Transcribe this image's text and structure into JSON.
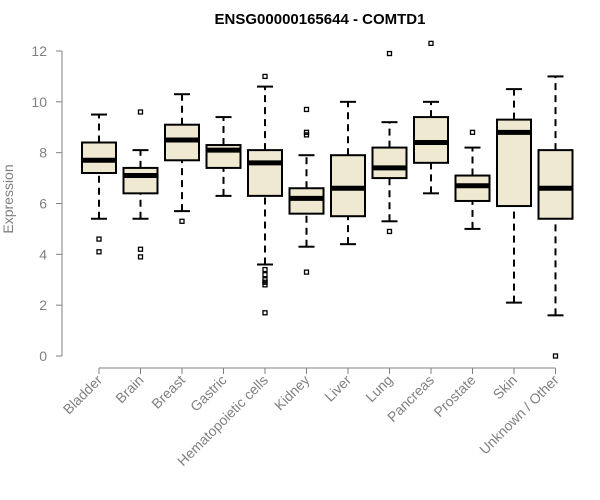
{
  "chart_data": {
    "type": "box",
    "title": "ENSG00000165644 - COMTD1",
    "xlabel": "",
    "ylabel": "Expression",
    "ylim": [
      0,
      12
    ],
    "yticks": [
      0,
      2,
      4,
      6,
      8,
      10,
      12
    ],
    "grid": false,
    "legend": "none",
    "colors": {
      "box_fill": "#efe9d2",
      "stroke": "#000000",
      "axis": "#808080"
    },
    "categories": [
      "Bladder",
      "Brain",
      "Breast",
      "Gastric",
      "Hematopoietic cells",
      "Kidney",
      "Liver",
      "Lung",
      "Pancreas",
      "Prostate",
      "Skin",
      "Unknown / Other"
    ],
    "boxes": [
      {
        "q1": 7.2,
        "median": 7.7,
        "q3": 8.4,
        "whisker_low": 5.4,
        "whisker_high": 9.5,
        "outliers": [
          4.6,
          4.1
        ]
      },
      {
        "q1": 6.4,
        "median": 7.1,
        "q3": 7.4,
        "whisker_low": 5.4,
        "whisker_high": 8.1,
        "outliers": [
          9.6,
          4.2,
          3.9
        ]
      },
      {
        "q1": 7.7,
        "median": 8.5,
        "q3": 9.1,
        "whisker_low": 5.7,
        "whisker_high": 10.3,
        "outliers": [
          5.3
        ]
      },
      {
        "q1": 7.4,
        "median": 8.1,
        "q3": 8.3,
        "whisker_low": 6.3,
        "whisker_high": 9.4,
        "outliers": []
      },
      {
        "q1": 6.3,
        "median": 7.6,
        "q3": 8.1,
        "whisker_low": 3.6,
        "whisker_high": 10.6,
        "outliers": [
          11.0,
          3.4,
          3.2,
          3.0,
          2.9,
          2.8,
          1.7
        ]
      },
      {
        "q1": 5.6,
        "median": 6.2,
        "q3": 6.6,
        "whisker_low": 4.3,
        "whisker_high": 7.9,
        "outliers": [
          9.7,
          8.8,
          8.7,
          3.3
        ]
      },
      {
        "q1": 5.5,
        "median": 6.6,
        "q3": 7.9,
        "whisker_low": 4.4,
        "whisker_high": 10.0,
        "outliers": []
      },
      {
        "q1": 7.0,
        "median": 7.4,
        "q3": 8.2,
        "whisker_low": 5.3,
        "whisker_high": 9.2,
        "outliers": [
          11.9,
          4.9
        ]
      },
      {
        "q1": 7.6,
        "median": 8.4,
        "q3": 9.4,
        "whisker_low": 6.4,
        "whisker_high": 10.0,
        "outliers": [
          12.3
        ]
      },
      {
        "q1": 6.1,
        "median": 6.7,
        "q3": 7.1,
        "whisker_low": 5.0,
        "whisker_high": 8.2,
        "outliers": [
          8.8
        ]
      },
      {
        "q1": 5.9,
        "median": 8.8,
        "q3": 9.3,
        "whisker_low": 2.1,
        "whisker_high": 10.5,
        "outliers": []
      },
      {
        "q1": 5.4,
        "median": 6.6,
        "q3": 8.1,
        "whisker_low": 1.6,
        "whisker_high": 11.0,
        "outliers": [
          0.0
        ]
      }
    ]
  }
}
